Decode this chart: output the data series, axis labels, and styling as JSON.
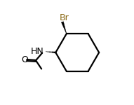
{
  "background_color": "#ffffff",
  "bond_color": "#000000",
  "br_color": "#8b6914",
  "nh_color": "#000000",
  "o_color": "#000000",
  "figsize": [
    1.91,
    1.5
  ],
  "dpi": 100,
  "br_label": "Br",
  "nh_label": "HN",
  "o_label": "O",
  "lw": 1.6
}
